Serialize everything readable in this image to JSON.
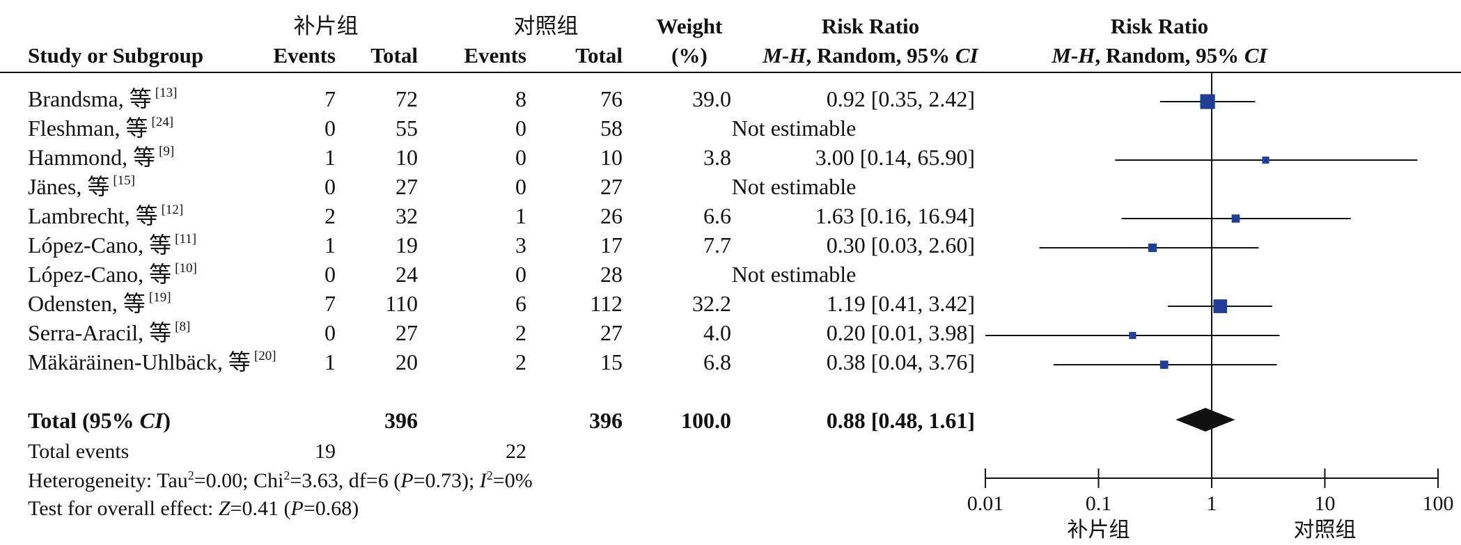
{
  "header": {
    "group_exp": "补片组",
    "group_ctl": "对照组",
    "study": "Study or Subgroup",
    "events": "Events",
    "total": "Total",
    "weight_1": "Weight",
    "weight_2": "(%)",
    "rr_title": "Risk Ratio",
    "rr_sub_italic": "M-H",
    "rr_sub_mid": ", Random, 95% ",
    "rr_sub_ci": "CI"
  },
  "rows": [
    {
      "study": "Brandsma, 等",
      "ref": "[13]",
      "e_events": "7",
      "e_total": "72",
      "c_events": "8",
      "c_total": "76",
      "weight": "39.0",
      "rr_text": "0.92 [0.35, 2.42]"
    },
    {
      "study": "Fleshman, 等",
      "ref": "[24]",
      "e_events": "0",
      "e_total": "55",
      "c_events": "0",
      "c_total": "58",
      "weight": "",
      "rr_text": "Not estimable"
    },
    {
      "study": "Hammond, 等",
      "ref": "[9]",
      "e_events": "1",
      "e_total": "10",
      "c_events": "0",
      "c_total": "10",
      "weight": "3.8",
      "rr_text": "3.00 [0.14, 65.90]"
    },
    {
      "study": "Jänes, 等",
      "ref": "[15]",
      "e_events": "0",
      "e_total": "27",
      "c_events": "0",
      "c_total": "27",
      "weight": "",
      "rr_text": "Not estimable"
    },
    {
      "study": "Lambrecht, 等",
      "ref": "[12]",
      "e_events": "2",
      "e_total": "32",
      "c_events": "1",
      "c_total": "26",
      "weight": "6.6",
      "rr_text": "1.63 [0.16, 16.94]"
    },
    {
      "study": "López-Cano, 等",
      "ref": "[11]",
      "e_events": "1",
      "e_total": "19",
      "c_events": "3",
      "c_total": "17",
      "weight": "7.7",
      "rr_text": "0.30 [0.03, 2.60]"
    },
    {
      "study": "López-Cano, 等",
      "ref": "[10]",
      "e_events": "0",
      "e_total": "24",
      "c_events": "0",
      "c_total": "28",
      "weight": "",
      "rr_text": "Not estimable"
    },
    {
      "study": "Odensten, 等",
      "ref": "[19]",
      "e_events": "7",
      "e_total": "110",
      "c_events": "6",
      "c_total": "112",
      "weight": "32.2",
      "rr_text": "1.19 [0.41, 3.42]"
    },
    {
      "study": "Serra-Aracil, 等",
      "ref": "[8]",
      "e_events": "0",
      "e_total": "27",
      "c_events": "2",
      "c_total": "27",
      "weight": "4.0",
      "rr_text": "0.20 [0.01, 3.98]"
    },
    {
      "study": "Mäkäräinen-Uhlbäck, 等",
      "ref": "[20]",
      "e_events": "1",
      "e_total": "20",
      "c_events": "2",
      "c_total": "15",
      "weight": "6.8",
      "rr_text": "0.38 [0.04, 3.76]"
    }
  ],
  "total": {
    "label_pre": "Total (95% ",
    "label_ci": "CI",
    "label_post": ")",
    "e_total": "396",
    "c_total": "396",
    "weight": "100.0",
    "rr_text": "0.88 [0.48, 1.61]"
  },
  "total_events": {
    "label": "Total events",
    "e": "19",
    "c": "22"
  },
  "heterogeneity": {
    "p1": "Heterogeneity: Tau",
    "s1": "2",
    "p2": "=0.00; Chi",
    "s2": "2",
    "p3": "=3.63, df=6 (",
    "pi": "P",
    "p4": "=0.73); ",
    "ii": "I",
    "s3": "2",
    "p5": "=0%"
  },
  "overall": {
    "p1": "Test for overall effect: ",
    "zi": "Z",
    "p2": "=0.41 (",
    "pi": "P",
    "p3": "=0.68)"
  },
  "chart_data": {
    "type": "forest",
    "scale": "log",
    "xlim": [
      0.01,
      100
    ],
    "ticks": [
      0.01,
      0.1,
      1,
      10,
      100
    ],
    "tick_labels": [
      "0.01",
      "0.1",
      "1",
      "10",
      "100"
    ],
    "xlabel_left": "补片组",
    "xlabel_right": "对照组",
    "null_value": 1,
    "marker_color": "#1f3f99",
    "studies": [
      {
        "rr": 0.92,
        "lo": 0.35,
        "hi": 2.42,
        "weight": 39.0
      },
      null,
      {
        "rr": 3.0,
        "lo": 0.14,
        "hi": 65.9,
        "weight": 3.8
      },
      null,
      {
        "rr": 1.63,
        "lo": 0.16,
        "hi": 16.94,
        "weight": 6.6
      },
      {
        "rr": 0.3,
        "lo": 0.03,
        "hi": 2.6,
        "weight": 7.7
      },
      null,
      {
        "rr": 1.19,
        "lo": 0.41,
        "hi": 3.42,
        "weight": 32.2
      },
      {
        "rr": 0.2,
        "lo": 0.01,
        "hi": 3.98,
        "weight": 4.0
      },
      {
        "rr": 0.38,
        "lo": 0.04,
        "hi": 3.76,
        "weight": 6.8
      }
    ],
    "pooled": {
      "rr": 0.88,
      "lo": 0.48,
      "hi": 1.61
    }
  }
}
